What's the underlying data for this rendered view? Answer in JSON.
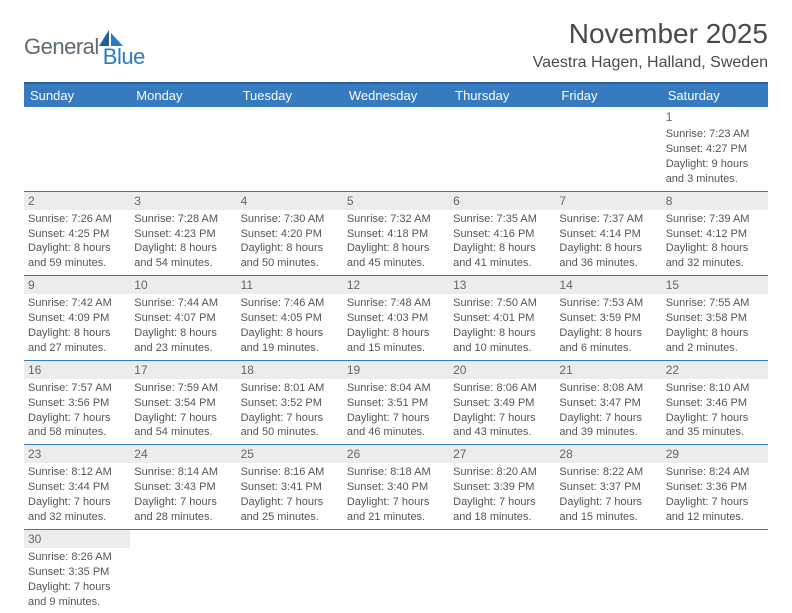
{
  "logo": {
    "text1": "General",
    "text2": "Blue"
  },
  "title": "November 2025",
  "location": "Vaestra Hagen, Halland, Sweden",
  "colors": {
    "header_bg": "#367bbf",
    "header_border": "#2b5f95",
    "text": "#555555",
    "daynum_bg": "#ececec"
  },
  "day_headers": [
    "Sunday",
    "Monday",
    "Tuesday",
    "Wednesday",
    "Thursday",
    "Friday",
    "Saturday"
  ],
  "weeks": [
    [
      null,
      null,
      null,
      null,
      null,
      null,
      {
        "n": "1",
        "sr": "Sunrise: 7:23 AM",
        "ss": "Sunset: 4:27 PM",
        "dl": "Daylight: 9 hours and 3 minutes."
      }
    ],
    [
      {
        "n": "2",
        "sr": "Sunrise: 7:26 AM",
        "ss": "Sunset: 4:25 PM",
        "dl": "Daylight: 8 hours and 59 minutes."
      },
      {
        "n": "3",
        "sr": "Sunrise: 7:28 AM",
        "ss": "Sunset: 4:23 PM",
        "dl": "Daylight: 8 hours and 54 minutes."
      },
      {
        "n": "4",
        "sr": "Sunrise: 7:30 AM",
        "ss": "Sunset: 4:20 PM",
        "dl": "Daylight: 8 hours and 50 minutes."
      },
      {
        "n": "5",
        "sr": "Sunrise: 7:32 AM",
        "ss": "Sunset: 4:18 PM",
        "dl": "Daylight: 8 hours and 45 minutes."
      },
      {
        "n": "6",
        "sr": "Sunrise: 7:35 AM",
        "ss": "Sunset: 4:16 PM",
        "dl": "Daylight: 8 hours and 41 minutes."
      },
      {
        "n": "7",
        "sr": "Sunrise: 7:37 AM",
        "ss": "Sunset: 4:14 PM",
        "dl": "Daylight: 8 hours and 36 minutes."
      },
      {
        "n": "8",
        "sr": "Sunrise: 7:39 AM",
        "ss": "Sunset: 4:12 PM",
        "dl": "Daylight: 8 hours and 32 minutes."
      }
    ],
    [
      {
        "n": "9",
        "sr": "Sunrise: 7:42 AM",
        "ss": "Sunset: 4:09 PM",
        "dl": "Daylight: 8 hours and 27 minutes."
      },
      {
        "n": "10",
        "sr": "Sunrise: 7:44 AM",
        "ss": "Sunset: 4:07 PM",
        "dl": "Daylight: 8 hours and 23 minutes."
      },
      {
        "n": "11",
        "sr": "Sunrise: 7:46 AM",
        "ss": "Sunset: 4:05 PM",
        "dl": "Daylight: 8 hours and 19 minutes."
      },
      {
        "n": "12",
        "sr": "Sunrise: 7:48 AM",
        "ss": "Sunset: 4:03 PM",
        "dl": "Daylight: 8 hours and 15 minutes."
      },
      {
        "n": "13",
        "sr": "Sunrise: 7:50 AM",
        "ss": "Sunset: 4:01 PM",
        "dl": "Daylight: 8 hours and 10 minutes."
      },
      {
        "n": "14",
        "sr": "Sunrise: 7:53 AM",
        "ss": "Sunset: 3:59 PM",
        "dl": "Daylight: 8 hours and 6 minutes."
      },
      {
        "n": "15",
        "sr": "Sunrise: 7:55 AM",
        "ss": "Sunset: 3:58 PM",
        "dl": "Daylight: 8 hours and 2 minutes."
      }
    ],
    [
      {
        "n": "16",
        "sr": "Sunrise: 7:57 AM",
        "ss": "Sunset: 3:56 PM",
        "dl": "Daylight: 7 hours and 58 minutes."
      },
      {
        "n": "17",
        "sr": "Sunrise: 7:59 AM",
        "ss": "Sunset: 3:54 PM",
        "dl": "Daylight: 7 hours and 54 minutes."
      },
      {
        "n": "18",
        "sr": "Sunrise: 8:01 AM",
        "ss": "Sunset: 3:52 PM",
        "dl": "Daylight: 7 hours and 50 minutes."
      },
      {
        "n": "19",
        "sr": "Sunrise: 8:04 AM",
        "ss": "Sunset: 3:51 PM",
        "dl": "Daylight: 7 hours and 46 minutes."
      },
      {
        "n": "20",
        "sr": "Sunrise: 8:06 AM",
        "ss": "Sunset: 3:49 PM",
        "dl": "Daylight: 7 hours and 43 minutes."
      },
      {
        "n": "21",
        "sr": "Sunrise: 8:08 AM",
        "ss": "Sunset: 3:47 PM",
        "dl": "Daylight: 7 hours and 39 minutes."
      },
      {
        "n": "22",
        "sr": "Sunrise: 8:10 AM",
        "ss": "Sunset: 3:46 PM",
        "dl": "Daylight: 7 hours and 35 minutes."
      }
    ],
    [
      {
        "n": "23",
        "sr": "Sunrise: 8:12 AM",
        "ss": "Sunset: 3:44 PM",
        "dl": "Daylight: 7 hours and 32 minutes."
      },
      {
        "n": "24",
        "sr": "Sunrise: 8:14 AM",
        "ss": "Sunset: 3:43 PM",
        "dl": "Daylight: 7 hours and 28 minutes."
      },
      {
        "n": "25",
        "sr": "Sunrise: 8:16 AM",
        "ss": "Sunset: 3:41 PM",
        "dl": "Daylight: 7 hours and 25 minutes."
      },
      {
        "n": "26",
        "sr": "Sunrise: 8:18 AM",
        "ss": "Sunset: 3:40 PM",
        "dl": "Daylight: 7 hours and 21 minutes."
      },
      {
        "n": "27",
        "sr": "Sunrise: 8:20 AM",
        "ss": "Sunset: 3:39 PM",
        "dl": "Daylight: 7 hours and 18 minutes."
      },
      {
        "n": "28",
        "sr": "Sunrise: 8:22 AM",
        "ss": "Sunset: 3:37 PM",
        "dl": "Daylight: 7 hours and 15 minutes."
      },
      {
        "n": "29",
        "sr": "Sunrise: 8:24 AM",
        "ss": "Sunset: 3:36 PM",
        "dl": "Daylight: 7 hours and 12 minutes."
      }
    ],
    [
      {
        "n": "30",
        "sr": "Sunrise: 8:26 AM",
        "ss": "Sunset: 3:35 PM",
        "dl": "Daylight: 7 hours and 9 minutes."
      },
      null,
      null,
      null,
      null,
      null,
      null
    ]
  ]
}
